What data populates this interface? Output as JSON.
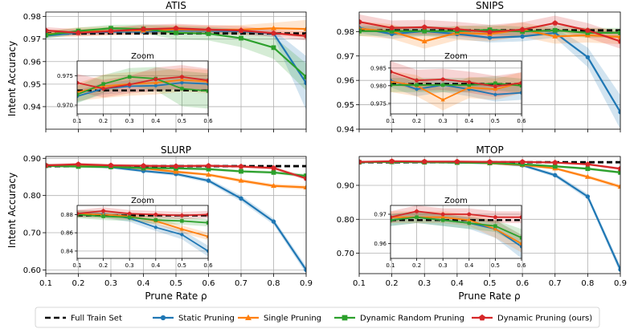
{
  "colors": {
    "full": "#000000",
    "static": "#1f77b4",
    "single": "#ff7f0e",
    "random": "#2ca02c",
    "dynamic": "#d62728"
  },
  "legend": [
    {
      "key": "full",
      "label": "Full Train Set",
      "style": "dashed"
    },
    {
      "key": "static",
      "label": "Static Pruning",
      "marker": "circle"
    },
    {
      "key": "single",
      "label": "Single Pruning",
      "marker": "triangle"
    },
    {
      "key": "random",
      "label": "Dynamic Random Pruning",
      "marker": "square"
    },
    {
      "key": "dynamic",
      "label": "Dynamic Pruning (ours)",
      "marker": "pentagon"
    }
  ],
  "shared_xlabel": "Prune Rate ρ",
  "shared_ylabel": "Intent Accuracy",
  "chart_data": [
    {
      "type": "line",
      "title": "ATIS",
      "x": [
        0.1,
        0.2,
        0.3,
        0.4,
        0.5,
        0.6,
        0.7,
        0.8,
        0.9
      ],
      "ylim": [
        0.93,
        0.982
      ],
      "yticks": [
        0.94,
        0.95,
        0.96,
        0.97,
        0.98
      ],
      "ytick_labels": [
        "0.94",
        "0.95",
        "0.96",
        "0.97",
        "0.98"
      ],
      "full": 0.9725,
      "series": [
        {
          "key": "static",
          "values": [
            0.9715,
            0.9728,
            0.9732,
            0.9733,
            0.9738,
            0.9736,
            0.9735,
            0.9725,
            0.9505
          ],
          "band": [
            0.001,
            0.001,
            0.001,
            0.001,
            0.001,
            0.001,
            0.001,
            0.0015,
            0.012
          ]
        },
        {
          "key": "single",
          "values": [
            0.9722,
            0.9732,
            0.9736,
            0.9738,
            0.9743,
            0.974,
            0.9742,
            0.9748,
            0.9745
          ],
          "band": [
            0.0015,
            0.002,
            0.002,
            0.002,
            0.002,
            0.002,
            0.002,
            0.0025,
            0.004
          ]
        },
        {
          "key": "random",
          "values": [
            0.9718,
            0.9736,
            0.9748,
            0.9745,
            0.9728,
            0.9724,
            0.9704,
            0.9662,
            0.9532
          ],
          "band": [
            0.0015,
            0.0015,
            0.0015,
            0.002,
            0.003,
            0.003,
            0.004,
            0.005,
            0.006
          ]
        },
        {
          "key": "dynamic",
          "values": [
            0.9738,
            0.9728,
            0.9735,
            0.9744,
            0.9748,
            0.9742,
            0.9738,
            0.9726,
            0.9714
          ],
          "band": [
            0.0015,
            0.0015,
            0.0015,
            0.002,
            0.002,
            0.002,
            0.002,
            0.0015,
            0.002
          ]
        }
      ],
      "zoom": {
        "title": "Zoom",
        "xlim": [
          0.1,
          0.6
        ],
        "xticks": [
          0.1,
          0.2,
          0.3,
          0.4,
          0.5,
          0.6
        ],
        "ylim": [
          0.9685,
          0.9775
        ],
        "yticks": [
          0.97,
          0.975
        ],
        "ytick_labels": [
          "0.970",
          "0.975"
        ]
      }
    },
    {
      "type": "line",
      "title": "SNIPS",
      "x": [
        0.1,
        0.2,
        0.3,
        0.4,
        0.5,
        0.6,
        0.7,
        0.8,
        0.9
      ],
      "ylim": [
        0.94,
        0.988
      ],
      "yticks": [
        0.94,
        0.95,
        0.96,
        0.97,
        0.98
      ],
      "ytick_labels": [
        "0.94",
        "0.95",
        "0.96",
        "0.97",
        "0.98"
      ],
      "full": 0.9805,
      "series": [
        {
          "key": "static",
          "values": [
            0.9815,
            0.979,
            0.9802,
            0.979,
            0.9775,
            0.978,
            0.9795,
            0.9695,
            0.947
          ],
          "band": [
            0.002,
            0.002,
            0.002,
            0.002,
            0.002,
            0.002,
            0.002,
            0.004,
            0.007
          ]
        },
        {
          "key": "single",
          "values": [
            0.9812,
            0.98,
            0.976,
            0.9795,
            0.979,
            0.9808,
            0.978,
            0.9785,
            0.9778
          ],
          "band": [
            0.003,
            0.003,
            0.003,
            0.003,
            0.003,
            0.003,
            0.003,
            0.003,
            0.003
          ]
        },
        {
          "key": "random",
          "values": [
            0.9802,
            0.9802,
            0.9802,
            0.9802,
            0.9807,
            0.98,
            0.9805,
            0.9795,
            0.9795
          ],
          "band": [
            0.002,
            0.002,
            0.002,
            0.002,
            0.002,
            0.002,
            0.002,
            0.002,
            0.002
          ]
        },
        {
          "key": "dynamic",
          "values": [
            0.984,
            0.9815,
            0.9818,
            0.981,
            0.9798,
            0.9808,
            0.9835,
            0.9805,
            0.976
          ],
          "band": [
            0.003,
            0.003,
            0.003,
            0.003,
            0.003,
            0.003,
            0.003,
            0.003,
            0.003
          ]
        }
      ],
      "zoom": {
        "title": "Zoom",
        "xlim": [
          0.1,
          0.6
        ],
        "xticks": [
          0.1,
          0.2,
          0.3,
          0.4,
          0.5,
          0.6
        ],
        "ylim": [
          0.972,
          0.987
        ],
        "yticks": [
          0.975,
          0.98,
          0.985
        ],
        "ytick_labels": [
          "0.975",
          "0.980",
          "0.985"
        ]
      }
    },
    {
      "type": "line",
      "title": "SLURP",
      "x": [
        0.1,
        0.2,
        0.3,
        0.4,
        0.5,
        0.6,
        0.7,
        0.8,
        0.9
      ],
      "ylim": [
        0.59,
        0.905
      ],
      "yticks": [
        0.6,
        0.7,
        0.8,
        0.9
      ],
      "ytick_labels": [
        "0.60",
        "0.70",
        "0.80",
        "0.90"
      ],
      "full": 0.879,
      "series": [
        {
          "key": "static",
          "values": [
            0.881,
            0.8805,
            0.876,
            0.866,
            0.858,
            0.84,
            0.792,
            0.73,
            0.6
          ],
          "band": [
            0.004,
            0.004,
            0.004,
            0.004,
            0.005,
            0.006,
            0.008,
            0.008,
            0.01
          ]
        },
        {
          "key": "single",
          "values": [
            0.881,
            0.88,
            0.878,
            0.873,
            0.864,
            0.856,
            0.84,
            0.826,
            0.822
          ],
          "band": [
            0.004,
            0.004,
            0.004,
            0.004,
            0.004,
            0.004,
            0.005,
            0.005,
            0.006
          ]
        },
        {
          "key": "random",
          "values": [
            0.88,
            0.878,
            0.877,
            0.874,
            0.873,
            0.871,
            0.865,
            0.862,
            0.853
          ],
          "band": [
            0.004,
            0.004,
            0.004,
            0.004,
            0.004,
            0.004,
            0.004,
            0.004,
            0.005
          ]
        },
        {
          "key": "dynamic",
          "values": [
            0.881,
            0.884,
            0.881,
            0.88,
            0.879,
            0.88,
            0.878,
            0.874,
            0.846
          ],
          "band": [
            0.004,
            0.004,
            0.004,
            0.004,
            0.004,
            0.004,
            0.004,
            0.004,
            0.005
          ]
        }
      ],
      "zoom": {
        "title": "Zoom",
        "xlim": [
          0.1,
          0.6
        ],
        "xticks": [
          0.1,
          0.2,
          0.3,
          0.4,
          0.5,
          0.6
        ],
        "ylim": [
          0.832,
          0.89
        ],
        "yticks": [
          0.84,
          0.86,
          0.88
        ],
        "ytick_labels": [
          "0.84",
          "0.86",
          "0.88"
        ]
      }
    },
    {
      "type": "line",
      "title": "MTOP",
      "x": [
        0.1,
        0.2,
        0.3,
        0.4,
        0.5,
        0.6,
        0.7,
        0.8,
        0.9
      ],
      "ylim": [
        0.64,
        0.985
      ],
      "yticks": [
        0.7,
        0.8,
        0.9
      ],
      "ytick_labels": [
        "0.70",
        "0.80",
        "0.90"
      ],
      "full": 0.968,
      "series": [
        {
          "key": "static",
          "values": [
            0.968,
            0.969,
            0.968,
            0.967,
            0.965,
            0.959,
            0.93,
            0.867,
            0.652
          ],
          "band": [
            0.002,
            0.002,
            0.002,
            0.002,
            0.003,
            0.004,
            0.006,
            0.008,
            0.012
          ]
        },
        {
          "key": "single",
          "values": [
            0.969,
            0.969,
            0.969,
            0.968,
            0.965,
            0.96,
            0.95,
            0.925,
            0.896
          ],
          "band": [
            0.002,
            0.002,
            0.002,
            0.002,
            0.003,
            0.003,
            0.004,
            0.005,
            0.006
          ]
        },
        {
          "key": "random",
          "values": [
            0.968,
            0.969,
            0.968,
            0.967,
            0.966,
            0.962,
            0.956,
            0.949,
            0.938
          ],
          "band": [
            0.002,
            0.002,
            0.002,
            0.002,
            0.002,
            0.003,
            0.003,
            0.004,
            0.004
          ]
        },
        {
          "key": "dynamic",
          "values": [
            0.969,
            0.971,
            0.97,
            0.97,
            0.969,
            0.969,
            0.967,
            0.962,
            0.949
          ],
          "band": [
            0.002,
            0.002,
            0.002,
            0.002,
            0.002,
            0.002,
            0.002,
            0.003,
            0.004
          ]
        }
      ],
      "zoom": {
        "title": "Zoom",
        "xlim": [
          0.1,
          0.6
        ],
        "xticks": [
          0.1,
          0.2,
          0.3,
          0.4,
          0.5,
          0.6
        ],
        "ylim": [
          0.955,
          0.973
        ],
        "yticks": [
          0.96,
          0.97
        ],
        "ytick_labels": [
          "0.96",
          "0.97"
        ]
      }
    }
  ],
  "x_axis": {
    "lim": [
      0.1,
      0.9
    ],
    "ticks": [
      0.1,
      0.2,
      0.3,
      0.4,
      0.5,
      0.6,
      0.7,
      0.8,
      0.9
    ],
    "tick_labels": [
      "0.1",
      "0.2",
      "0.3",
      "0.4",
      "0.5",
      "0.6",
      "0.7",
      "0.8",
      "0.9"
    ]
  }
}
